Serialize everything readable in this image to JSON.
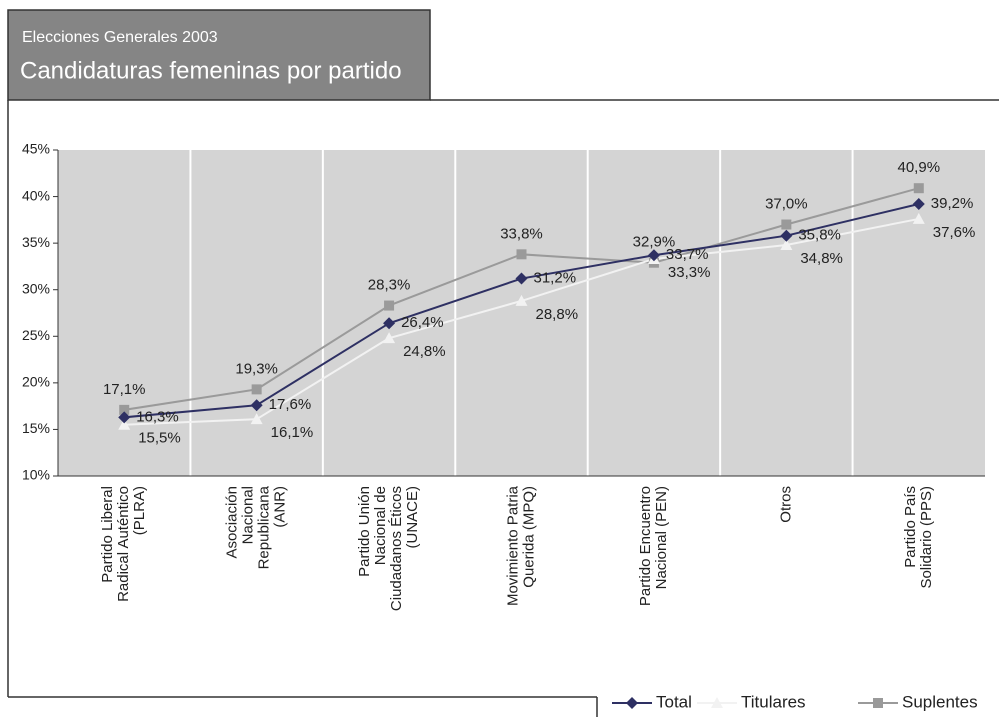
{
  "chart_data": {
    "type": "line",
    "supertitle": "Elecciones Generales 2003",
    "title": "Candidaturas femeninas por partido",
    "categories": [
      [
        "Partido Liberal",
        "Radical Auténtico",
        "(PLRA)"
      ],
      [
        "Asociación",
        "Nacional",
        "Republicana",
        "(ANR)"
      ],
      [
        "Partido Unión",
        "Nacional de",
        "Ciudadanos Éticos",
        "(UNACE)"
      ],
      [
        "Movimiento Patria",
        "Querida (MPQ)"
      ],
      [
        "Partido Encuentro",
        "Nacional (PEN)"
      ],
      [
        "Otros"
      ],
      [
        "Partido País",
        "Solidario (PPS)"
      ]
    ],
    "series": [
      {
        "name": "Total",
        "color": "#2e3063",
        "marker": "diamond",
        "values": [
          16.3,
          17.6,
          26.4,
          31.2,
          33.7,
          35.8,
          39.2
        ],
        "value_labels": [
          "16,3%",
          "17,6%",
          "26,4%",
          "31,2%",
          "33,7%",
          "35,8%",
          "39,2%"
        ]
      },
      {
        "name": "Titulares",
        "color": "#f2f2f2",
        "marker": "triangle",
        "values": [
          15.5,
          16.1,
          24.8,
          28.8,
          33.3,
          34.8,
          37.6
        ],
        "value_labels": [
          "15,5%",
          "16,1%",
          "24,8%",
          "28,8%",
          "33,3%",
          "34,8%",
          "37,6%"
        ]
      },
      {
        "name": "Suplentes",
        "color": "#9a9a9a",
        "marker": "square",
        "values": [
          17.1,
          19.3,
          28.3,
          33.8,
          32.9,
          37.0,
          40.9
        ],
        "value_labels": [
          "17,1%",
          "19,3%",
          "28,3%",
          "33,8%",
          "32,9%",
          "37,0%",
          "40,9%"
        ]
      }
    ],
    "ylim": [
      10,
      45
    ],
    "yticks": [
      {
        "value": 10,
        "label": "10%"
      },
      {
        "value": 15,
        "label": "15%"
      },
      {
        "value": 20,
        "label": "20%"
      },
      {
        "value": 25,
        "label": "25%"
      },
      {
        "value": 30,
        "label": "30%"
      },
      {
        "value": 35,
        "label": "35%"
      },
      {
        "value": 40,
        "label": "40%"
      },
      {
        "value": 45,
        "label": "45%"
      }
    ],
    "legend": "bottom-right"
  }
}
